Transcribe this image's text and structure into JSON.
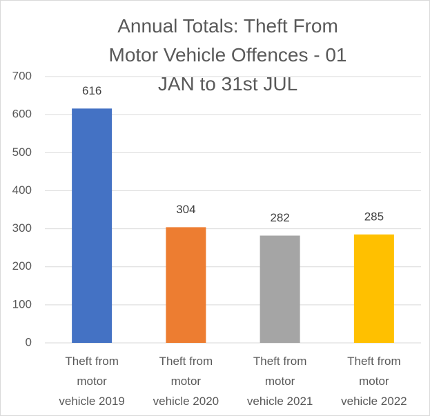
{
  "chart_data": {
    "type": "bar",
    "title": "Annual Totals: Theft From Motor Vehicle Offences - 01 JAN to 31st JUL",
    "categories": [
      "Theft from motor vehicle 2019",
      "Theft from motor vehicle 2020",
      "Theft from motor vehicle 2021",
      "Theft from motor vehicle 2022"
    ],
    "values": [
      616,
      304,
      282,
      285
    ],
    "colors": [
      "#4472c4",
      "#ed7d31",
      "#a5a5a5",
      "#ffc000"
    ],
    "ylim": [
      0,
      700
    ],
    "yticks": [
      0,
      100,
      200,
      300,
      400,
      500,
      600,
      700
    ],
    "grid": true
  }
}
